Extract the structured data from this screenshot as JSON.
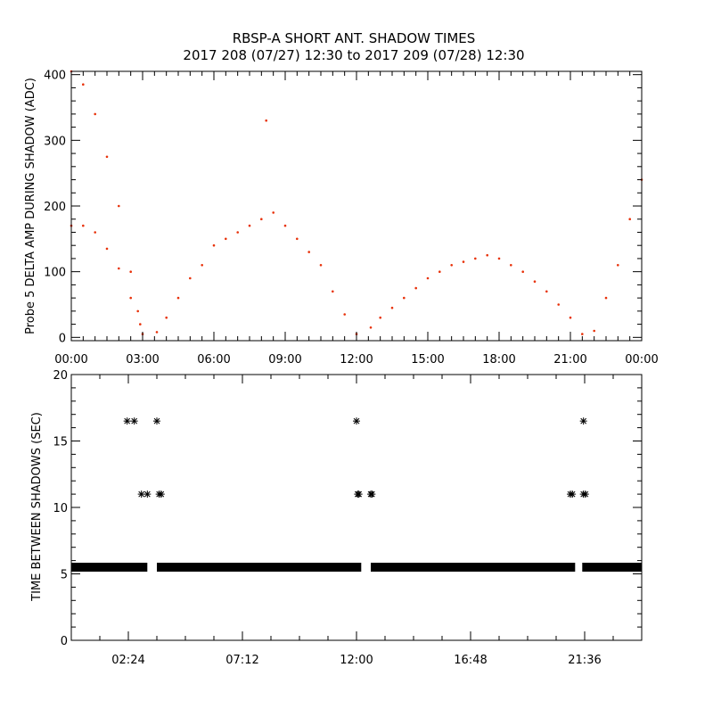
{
  "title": {
    "line1": "RBSP-A SHORT ANT. SHADOW TIMES",
    "line2": "2017 208 (07/27) 12:30 to 2017 209 (07/28) 12:30"
  },
  "colors": {
    "points_top": "#e8320a",
    "points_bottom": "#000000",
    "axes": "#000000"
  },
  "chart_data": [
    {
      "type": "scatter",
      "ylabel": "Probe 5 DELTA AMP DURING SHADOW (ADC)",
      "xlabel": "",
      "x_unit": "hours",
      "xlim": [
        0,
        24
      ],
      "ylim": [
        -5,
        405
      ],
      "x_tick_labels": [
        "00:00",
        "03:00",
        "06:00",
        "09:00",
        "12:00",
        "15:00",
        "18:00",
        "21:00",
        "00:00"
      ],
      "y_tick_labels": [
        "0",
        "100",
        "200",
        "300",
        "400"
      ],
      "series": [
        {
          "values": [
            {
              "x": 0.0,
              "y": 405
            },
            {
              "x": 0.5,
              "y": 385
            },
            {
              "x": 1.0,
              "y": 340
            },
            {
              "x": 1.5,
              "y": 275
            },
            {
              "x": 2.0,
              "y": 200
            },
            {
              "x": 2.5,
              "y": 100
            },
            {
              "x": 2.8,
              "y": 40
            },
            {
              "x": 3.0,
              "y": 5
            },
            {
              "x": 0.0,
              "y": 170
            },
            {
              "x": 0.5,
              "y": 170
            },
            {
              "x": 1.0,
              "y": 160
            },
            {
              "x": 1.5,
              "y": 135
            },
            {
              "x": 2.0,
              "y": 105
            },
            {
              "x": 2.5,
              "y": 60
            },
            {
              "x": 2.9,
              "y": 20
            },
            {
              "x": 3.6,
              "y": 8
            },
            {
              "x": 4.0,
              "y": 30
            },
            {
              "x": 4.5,
              "y": 60
            },
            {
              "x": 5.0,
              "y": 90
            },
            {
              "x": 5.5,
              "y": 110
            },
            {
              "x": 6.0,
              "y": 140
            },
            {
              "x": 6.5,
              "y": 150
            },
            {
              "x": 7.0,
              "y": 160
            },
            {
              "x": 7.5,
              "y": 170
            },
            {
              "x": 8.0,
              "y": 180
            },
            {
              "x": 8.2,
              "y": 330
            },
            {
              "x": 8.5,
              "y": 190
            },
            {
              "x": 9.0,
              "y": 170
            },
            {
              "x": 9.5,
              "y": 150
            },
            {
              "x": 10.0,
              "y": 130
            },
            {
              "x": 10.5,
              "y": 110
            },
            {
              "x": 11.0,
              "y": 70
            },
            {
              "x": 11.5,
              "y": 35
            },
            {
              "x": 12.0,
              "y": 5
            },
            {
              "x": 12.6,
              "y": 15
            },
            {
              "x": 13.0,
              "y": 30
            },
            {
              "x": 13.5,
              "y": 45
            },
            {
              "x": 14.0,
              "y": 60
            },
            {
              "x": 14.5,
              "y": 75
            },
            {
              "x": 15.0,
              "y": 90
            },
            {
              "x": 15.5,
              "y": 100
            },
            {
              "x": 16.0,
              "y": 110
            },
            {
              "x": 16.5,
              "y": 115
            },
            {
              "x": 17.0,
              "y": 120
            },
            {
              "x": 17.5,
              "y": 125
            },
            {
              "x": 18.0,
              "y": 120
            },
            {
              "x": 18.5,
              "y": 110
            },
            {
              "x": 19.0,
              "y": 100
            },
            {
              "x": 19.5,
              "y": 85
            },
            {
              "x": 20.0,
              "y": 70
            },
            {
              "x": 20.5,
              "y": 50
            },
            {
              "x": 21.0,
              "y": 30
            },
            {
              "x": 21.5,
              "y": 5
            },
            {
              "x": 22.0,
              "y": 10
            },
            {
              "x": 22.5,
              "y": 60
            },
            {
              "x": 23.0,
              "y": 110
            },
            {
              "x": 23.5,
              "y": 180
            },
            {
              "x": 24.0,
              "y": 240
            }
          ]
        }
      ]
    },
    {
      "type": "scatter",
      "ylabel": "TIME BETWEEN SHADOWS (SEC)",
      "xlabel": "",
      "x_unit": "hours",
      "xlim": [
        0,
        24
      ],
      "ylim": [
        0,
        20
      ],
      "x_tick_labels": [
        "02:24",
        "07:12",
        "12:00",
        "16:48",
        "21:36"
      ],
      "y_tick_labels": [
        "0",
        "5",
        "10",
        "15",
        "20"
      ],
      "series": [
        {
          "baseline": {
            "y": 5.5,
            "segments": [
              [
                0.0,
                3.2
              ],
              [
                3.6,
                12.2
              ],
              [
                12.6,
                21.2
              ],
              [
                21.5,
                24.0
              ]
            ]
          },
          "outliers": [
            {
              "x": 2.35,
              "y": 16.5
            },
            {
              "x": 2.65,
              "y": 16.5
            },
            {
              "x": 3.6,
              "y": 16.5
            },
            {
              "x": 2.95,
              "y": 11.0
            },
            {
              "x": 3.2,
              "y": 11.0
            },
            {
              "x": 3.7,
              "y": 11.0
            },
            {
              "x": 3.78,
              "y": 11.0
            },
            {
              "x": 12.0,
              "y": 16.5
            },
            {
              "x": 12.05,
              "y": 11.0
            },
            {
              "x": 12.1,
              "y": 11.0
            },
            {
              "x": 12.6,
              "y": 11.0
            },
            {
              "x": 12.65,
              "y": 11.0
            },
            {
              "x": 21.0,
              "y": 11.0
            },
            {
              "x": 21.08,
              "y": 11.0
            },
            {
              "x": 21.55,
              "y": 16.5
            },
            {
              "x": 21.55,
              "y": 11.0
            },
            {
              "x": 21.63,
              "y": 11.0
            }
          ]
        }
      ]
    }
  ]
}
